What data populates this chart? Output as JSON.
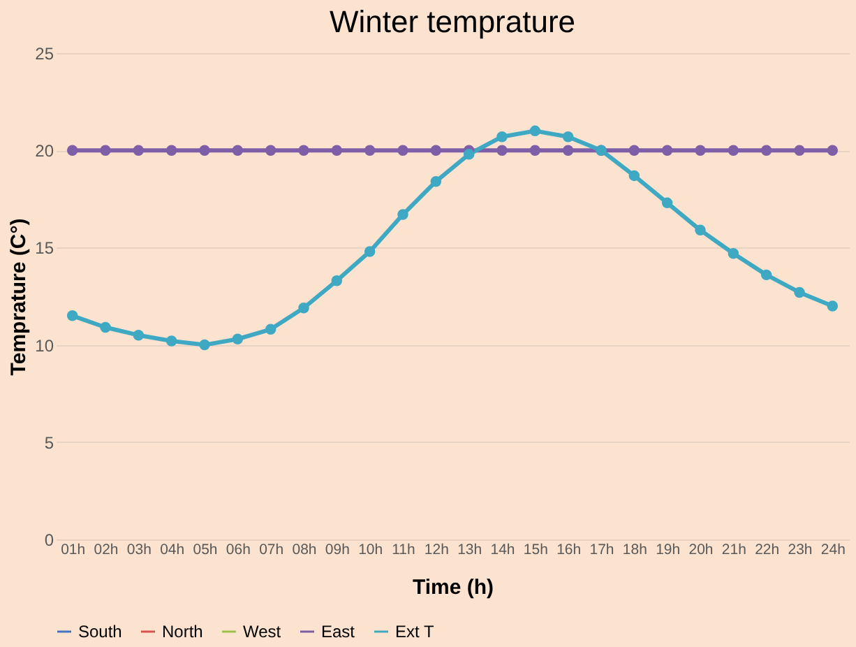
{
  "chart_data": {
    "type": "line",
    "title": "Winter temprature",
    "xlabel": "Time (h)",
    "ylabel": "Temprature (C°)",
    "categories": [
      "01h",
      "02h",
      "03h",
      "04h",
      "05h",
      "06h",
      "07h",
      "08h",
      "09h",
      "10h",
      "11h",
      "12h",
      "13h",
      "14h",
      "15h",
      "16h",
      "17h",
      "18h",
      "19h",
      "20h",
      "21h",
      "22h",
      "23h",
      "24h"
    ],
    "series": [
      {
        "name": "South",
        "color": "#4472c4",
        "values": [
          null,
          null,
          null,
          null,
          null,
          null,
          null,
          null,
          null,
          null,
          null,
          null,
          null,
          null,
          null,
          null,
          null,
          null,
          null,
          null,
          null,
          null,
          null,
          null
        ]
      },
      {
        "name": "North",
        "color": "#d9534f",
        "values": [
          null,
          null,
          null,
          null,
          null,
          null,
          null,
          null,
          null,
          null,
          null,
          null,
          null,
          null,
          null,
          null,
          null,
          null,
          null,
          null,
          null,
          null,
          null,
          null
        ]
      },
      {
        "name": "West",
        "color": "#9bc24b",
        "values": [
          null,
          null,
          null,
          null,
          null,
          null,
          null,
          null,
          null,
          null,
          null,
          null,
          null,
          null,
          null,
          null,
          null,
          null,
          null,
          null,
          null,
          null,
          null,
          null
        ]
      },
      {
        "name": "East",
        "color": "#7e5ea6",
        "values": [
          20,
          20,
          20,
          20,
          20,
          20,
          20,
          20,
          20,
          20,
          20,
          20,
          20,
          20,
          20,
          20,
          20,
          20,
          20,
          20,
          20,
          20,
          20,
          20
        ]
      },
      {
        "name": "Ext T",
        "color": "#3fa9c4",
        "values": [
          11.5,
          10.9,
          10.5,
          10.2,
          10.0,
          10.3,
          10.8,
          11.9,
          13.3,
          14.8,
          16.7,
          18.4,
          19.8,
          20.7,
          21.0,
          20.7,
          20.0,
          18.7,
          17.3,
          15.9,
          14.7,
          13.6,
          12.7,
          12.0
        ]
      }
    ],
    "ylim": [
      0,
      25
    ],
    "yticks": [
      0,
      5,
      10,
      15,
      20,
      25
    ],
    "grid": "y",
    "legend": "bottom",
    "marker": "circle",
    "line_style": "solid"
  }
}
